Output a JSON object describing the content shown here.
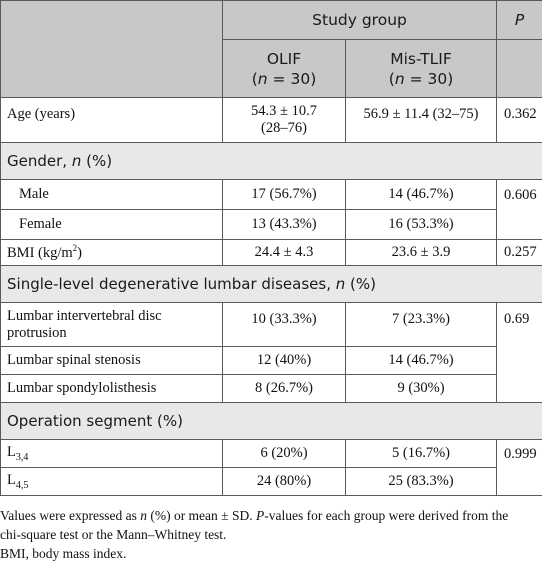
{
  "header": {
    "study_group": "Study group",
    "p": "P",
    "olif_name": "OLIF",
    "olif_n": "(n = 30)",
    "mistlif_name": "Mis-TLIF",
    "mistlif_n": "(n = 30)"
  },
  "rows": {
    "age": {
      "label": "Age (years)",
      "olif_line1": "54.3 ± 10.7",
      "olif_line2": "(28–76)",
      "mistlif": "56.9 ± 11.4 (32–75)",
      "p": "0.362"
    },
    "gender_section": "Gender, n (%)",
    "male": {
      "label": "Male",
      "olif": "17 (56.7%)",
      "mistlif": "14 (46.7%)"
    },
    "female": {
      "label": "Female",
      "olif": "13 (43.3%)",
      "mistlif": "16 (53.3%)"
    },
    "gender_p": "0.606",
    "bmi": {
      "label": "BMI (kg/m²)",
      "olif": "24.4 ± 4.3",
      "mistlif": "23.6 ± 3.9",
      "p": "0.257"
    },
    "diseases_section": "Single-level degenerative lumbar diseases, n (%)",
    "disc": {
      "label_line1": "Lumbar intervertebral disc",
      "label_line2": "protrusion",
      "olif": "10 (33.3%)",
      "mistlif": "7 (23.3%)"
    },
    "stenosis": {
      "label": "Lumbar spinal stenosis",
      "olif": "12 (40%)",
      "mistlif": "14 (46.7%)"
    },
    "spondy": {
      "label": "Lumbar spondylolisthesis",
      "olif": "8 (26.7%)",
      "mistlif": "9 (30%)"
    },
    "diseases_p": "0.69",
    "segment_section": "Operation segment (%)",
    "l34": {
      "label": "L",
      "sub": "3,4",
      "olif": "6 (20%)",
      "mistlif": "5 (16.7%)"
    },
    "l45": {
      "label": "L",
      "sub": "4,5",
      "olif": "24 (80%)",
      "mistlif": "25 (83.3%)"
    },
    "segment_p": "0.999"
  },
  "footnote": {
    "line1": "Values were expressed as n (%) or mean ± SD. P-values for each group were derived from the",
    "line2": "chi-square test or the Mann–Whitney test.",
    "line3": "BMI, body mass index."
  }
}
